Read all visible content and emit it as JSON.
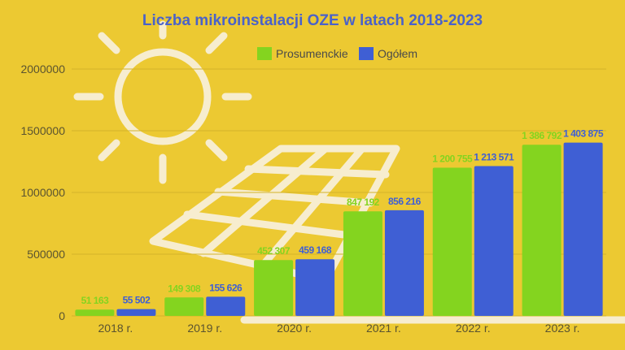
{
  "chart_data": {
    "type": "bar",
    "title": "Liczba mikroinstalacji OZE w latach 2018-2023",
    "categories": [
      "2018 r.",
      "2019 r.",
      "2020 r.",
      "2021 r.",
      "2022 r.",
      "2023 r."
    ],
    "series": [
      {
        "name": "Prosumenckie",
        "color": "#84D41F",
        "values": [
          51163,
          149308,
          452307,
          847192,
          1200755,
          1386792
        ],
        "labels": [
          "51 163",
          "149 308",
          "452 307",
          "847 192",
          "1 200 755",
          "1 386 792"
        ]
      },
      {
        "name": "Ogółem",
        "color": "#3F5FD4",
        "values": [
          55502,
          155626,
          459168,
          856216,
          1213571,
          1403875
        ],
        "labels": [
          "55 502",
          "155 626",
          "459 168",
          "856 216",
          "1 213 571",
          "1 403 875"
        ]
      }
    ],
    "ylim": [
      0,
      2000000
    ],
    "yticks": [
      "0",
      "500000",
      "1000000",
      "1500000",
      "2000000"
    ],
    "ytick_values": [
      0,
      500000,
      1000000,
      1500000,
      2000000
    ],
    "xlabel": "",
    "ylabel": "",
    "grid": true,
    "legend": "top-center"
  }
}
